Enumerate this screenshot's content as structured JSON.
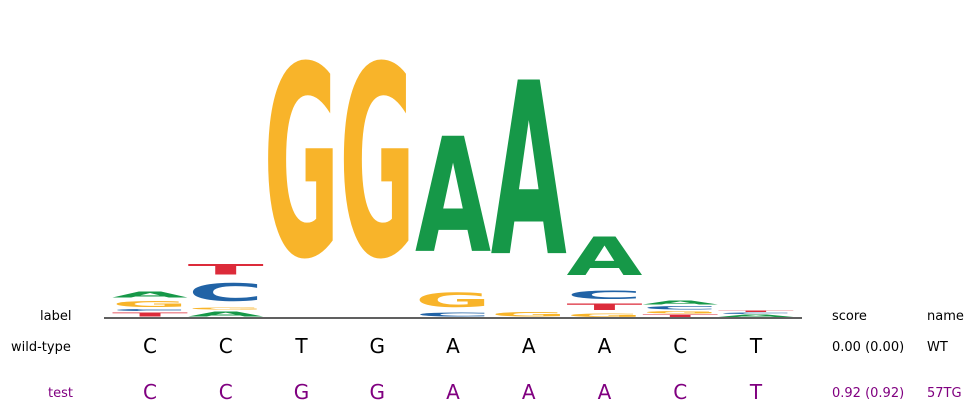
{
  "colors": {
    "A": "#169848",
    "C": "#2163a6",
    "G": "#f8b42a",
    "T": "#dc2b3a",
    "test_text": "#800080",
    "wt_text": "#000000"
  },
  "header": {
    "label": "label",
    "score": "score",
    "name": "name"
  },
  "rows": [
    {
      "label": "wild-type",
      "sequence": [
        "C",
        "C",
        "T",
        "G",
        "A",
        "A",
        "A",
        "C",
        "T"
      ],
      "score": "0.00 (0.00)",
      "name": "WT"
    },
    {
      "label": "test",
      "sequence": [
        "C",
        "C",
        "G",
        "G",
        "A",
        "A",
        "A",
        "C",
        "T"
      ],
      "score": "0.92 (0.92)",
      "name": "57TG"
    }
  ],
  "logo": [
    [
      [
        "T",
        0.02
      ],
      [
        "C",
        0.01
      ],
      [
        "G",
        0.03
      ],
      [
        "A",
        0.03
      ]
    ],
    [
      [
        "A",
        0.025
      ],
      [
        "G",
        0.01
      ],
      [
        "C",
        0.095
      ],
      [
        "T",
        0.055
      ]
    ],
    [
      [
        "G",
        1.0
      ]
    ],
    [
      [
        "G",
        1.0
      ]
    ],
    [
      [
        "C",
        0.02
      ],
      [
        "G",
        0.075
      ],
      [
        "A",
        0.6
      ]
    ],
    [
      [
        "G",
        0.025
      ],
      [
        "A",
        0.905
      ]
    ],
    [
      [
        "G",
        0.018
      ],
      [
        "T",
        0.035
      ],
      [
        "C",
        0.045
      ],
      [
        "A",
        0.2
      ]
    ],
    [
      [
        "T",
        0.012
      ],
      [
        "G",
        0.012
      ],
      [
        "C",
        0.015
      ],
      [
        "A",
        0.02
      ]
    ],
    [
      [
        "A",
        0.012
      ],
      [
        "C",
        0.006
      ],
      [
        "T",
        0.008
      ]
    ]
  ]
}
